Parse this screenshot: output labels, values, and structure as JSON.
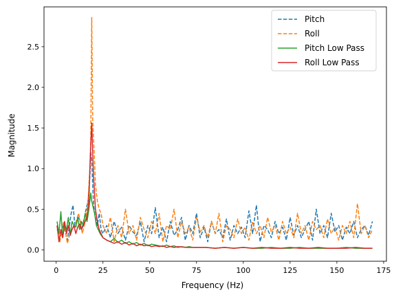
{
  "chart_data": {
    "type": "line",
    "title": "",
    "xlabel": "Frequency (Hz)",
    "ylabel": "Magnitude",
    "xlim": [
      -6.5,
      176.5
    ],
    "ylim": [
      -0.14,
      2.99
    ],
    "xticks": [
      0,
      25,
      50,
      75,
      100,
      125,
      150,
      175
    ],
    "yticks": [
      0.0,
      0.5,
      1.0,
      1.5,
      2.0,
      2.5
    ],
    "xtick_labels": [
      "0",
      "25",
      "50",
      "75",
      "100",
      "125",
      "150",
      "175"
    ],
    "ytick_labels": [
      "0.0",
      "0.5",
      "1.0",
      "1.5",
      "2.0",
      "2.5"
    ],
    "grid": false,
    "legend_position": "top-right",
    "series": [
      {
        "name": "Pitch",
        "color": "#1f77b4",
        "style": "dashed",
        "x": [
          0.5,
          2,
          4,
          6,
          8,
          9,
          10,
          12,
          14,
          16,
          17,
          18,
          18.5,
          19,
          19.5,
          20,
          21,
          22,
          23,
          24,
          25,
          27,
          29,
          31,
          33,
          35,
          37,
          39,
          41,
          43,
          45,
          47,
          49,
          51,
          53,
          55,
          57,
          59,
          61,
          63,
          65,
          67,
          69,
          71,
          73,
          75,
          77,
          79,
          81,
          83,
          85,
          87,
          89,
          91,
          93,
          95,
          97,
          99,
          101,
          103,
          105,
          107,
          109,
          111,
          113,
          115,
          117,
          119,
          121,
          123,
          125,
          127,
          129,
          131,
          133,
          135,
          137,
          139,
          141,
          143,
          145,
          147,
          149,
          151,
          153,
          155,
          157,
          159,
          161,
          163,
          165,
          167,
          169
        ],
        "y": [
          0.25,
          0.2,
          0.3,
          0.12,
          0.45,
          0.55,
          0.3,
          0.4,
          0.28,
          0.5,
          0.6,
          0.9,
          1.2,
          1.1,
          0.8,
          0.55,
          0.4,
          0.3,
          0.45,
          0.25,
          0.2,
          0.3,
          0.15,
          0.35,
          0.2,
          0.28,
          0.12,
          0.3,
          0.22,
          0.18,
          0.35,
          0.1,
          0.3,
          0.2,
          0.52,
          0.15,
          0.28,
          0.1,
          0.35,
          0.18,
          0.25,
          0.4,
          0.12,
          0.3,
          0.2,
          0.45,
          0.15,
          0.28,
          0.1,
          0.35,
          0.2,
          0.25,
          0.15,
          0.38,
          0.12,
          0.3,
          0.2,
          0.28,
          0.15,
          0.48,
          0.2,
          0.55,
          0.1,
          0.3,
          0.25,
          0.15,
          0.35,
          0.2,
          0.28,
          0.12,
          0.4,
          0.18,
          0.3,
          0.15,
          0.25,
          0.35,
          0.12,
          0.5,
          0.2,
          0.3,
          0.15,
          0.45,
          0.22,
          0.3,
          0.12,
          0.28,
          0.2,
          0.35,
          0.15,
          0.25,
          0.3,
          0.18,
          0.35
        ]
      },
      {
        "name": "Roll",
        "color": "#ff7f0e",
        "style": "dashed",
        "x": [
          0.5,
          2,
          4,
          6,
          8,
          10,
          12,
          14,
          16,
          17,
          18,
          18.5,
          19,
          19.5,
          20,
          20.5,
          21,
          22,
          23,
          24,
          25,
          27,
          29,
          31,
          33,
          35,
          37,
          39,
          41,
          43,
          45,
          47,
          49,
          51,
          53,
          55,
          57,
          59,
          61,
          63,
          65,
          67,
          69,
          71,
          73,
          75,
          77,
          79,
          81,
          83,
          85,
          87,
          89,
          91,
          93,
          95,
          97,
          99,
          101,
          103,
          105,
          107,
          109,
          111,
          113,
          115,
          117,
          119,
          121,
          123,
          125,
          127,
          129,
          131,
          133,
          135,
          137,
          139,
          141,
          143,
          145,
          147,
          149,
          151,
          153,
          155,
          157,
          159,
          161,
          163,
          165,
          167,
          169
        ],
        "y": [
          0.3,
          0.1,
          0.35,
          0.08,
          0.25,
          0.3,
          0.45,
          0.2,
          0.4,
          0.6,
          1.0,
          1.35,
          2.86,
          1.6,
          1.35,
          1.1,
          0.8,
          0.6,
          0.5,
          0.45,
          0.3,
          0.2,
          0.4,
          0.1,
          0.3,
          0.15,
          0.5,
          0.2,
          0.3,
          0.12,
          0.4,
          0.25,
          0.15,
          0.35,
          0.2,
          0.45,
          0.1,
          0.3,
          0.25,
          0.5,
          0.15,
          0.35,
          0.2,
          0.28,
          0.12,
          0.4,
          0.22,
          0.3,
          0.15,
          0.35,
          0.2,
          0.45,
          0.1,
          0.3,
          0.25,
          0.15,
          0.38,
          0.2,
          0.28,
          0.12,
          0.35,
          0.2,
          0.3,
          0.15,
          0.4,
          0.22,
          0.3,
          0.12,
          0.35,
          0.2,
          0.28,
          0.15,
          0.45,
          0.2,
          0.3,
          0.12,
          0.35,
          0.25,
          0.3,
          0.15,
          0.38,
          0.2,
          0.28,
          0.12,
          0.3,
          0.2,
          0.35,
          0.15,
          0.57,
          0.2,
          0.3,
          0.15,
          0.25
        ]
      },
      {
        "name": "Pitch Low Pass",
        "color": "#2ca02c",
        "style": "solid",
        "x": [
          0.5,
          1.5,
          2.5,
          3.5,
          4.5,
          5.5,
          6.5,
          7.5,
          8.5,
          9.5,
          10.5,
          11.5,
          12.5,
          13.5,
          14.5,
          15.5,
          16.5,
          17.5,
          18.5,
          19,
          19.5,
          20.5,
          21.5,
          22.5,
          23.5,
          25,
          27,
          29,
          31,
          33,
          35,
          37,
          39,
          41,
          43,
          45,
          47,
          49,
          51,
          53,
          55,
          57,
          59,
          61,
          63,
          65,
          67,
          69,
          71,
          73,
          75,
          80,
          85,
          90,
          95,
          100,
          105,
          110,
          115,
          120,
          125,
          130,
          135,
          140,
          145,
          150,
          155,
          160,
          165,
          169
        ],
        "y": [
          0.35,
          0.2,
          0.47,
          0.15,
          0.3,
          0.25,
          0.4,
          0.18,
          0.35,
          0.3,
          0.28,
          0.4,
          0.25,
          0.35,
          0.3,
          0.45,
          0.35,
          0.5,
          0.7,
          0.6,
          0.55,
          0.45,
          0.3,
          0.25,
          0.2,
          0.15,
          0.12,
          0.1,
          0.14,
          0.09,
          0.12,
          0.08,
          0.1,
          0.07,
          0.09,
          0.06,
          0.08,
          0.05,
          0.07,
          0.06,
          0.05,
          0.04,
          0.06,
          0.04,
          0.05,
          0.03,
          0.04,
          0.03,
          0.04,
          0.03,
          0.03,
          0.03,
          0.02,
          0.03,
          0.02,
          0.03,
          0.02,
          0.02,
          0.03,
          0.02,
          0.02,
          0.03,
          0.02,
          0.02,
          0.02,
          0.02,
          0.03,
          0.02,
          0.02,
          0.02
        ]
      },
      {
        "name": "Roll Low Pass",
        "color": "#d62728",
        "style": "solid",
        "x": [
          0.5,
          1.5,
          2.5,
          3.5,
          4.5,
          5.5,
          6.5,
          7.5,
          8.5,
          9.5,
          10.5,
          11.5,
          12.5,
          13.5,
          14.5,
          15.5,
          16.5,
          17.5,
          18,
          18.5,
          19,
          19.5,
          20,
          20.5,
          21,
          22,
          23,
          24,
          25,
          27,
          29,
          31,
          33,
          35,
          37,
          39,
          41,
          43,
          45,
          47,
          49,
          51,
          53,
          55,
          57,
          59,
          61,
          63,
          65,
          70,
          75,
          80,
          85,
          90,
          95,
          100,
          105,
          110,
          115,
          120,
          125,
          130,
          135,
          140,
          145,
          150,
          155,
          160,
          165,
          169
        ],
        "y": [
          0.3,
          0.1,
          0.25,
          0.15,
          0.35,
          0.2,
          0.3,
          0.18,
          0.25,
          0.3,
          0.2,
          0.28,
          0.32,
          0.25,
          0.3,
          0.35,
          0.4,
          0.6,
          1.0,
          1.3,
          1.56,
          1.2,
          0.9,
          0.7,
          0.5,
          0.35,
          0.25,
          0.2,
          0.15,
          0.12,
          0.1,
          0.08,
          0.1,
          0.07,
          0.09,
          0.06,
          0.08,
          0.05,
          0.07,
          0.05,
          0.06,
          0.04,
          0.05,
          0.04,
          0.05,
          0.03,
          0.04,
          0.03,
          0.04,
          0.03,
          0.03,
          0.03,
          0.02,
          0.03,
          0.02,
          0.03,
          0.02,
          0.03,
          0.02,
          0.02,
          0.03,
          0.02,
          0.02,
          0.03,
          0.02,
          0.02,
          0.02,
          0.03,
          0.02,
          0.02
        ]
      }
    ]
  }
}
